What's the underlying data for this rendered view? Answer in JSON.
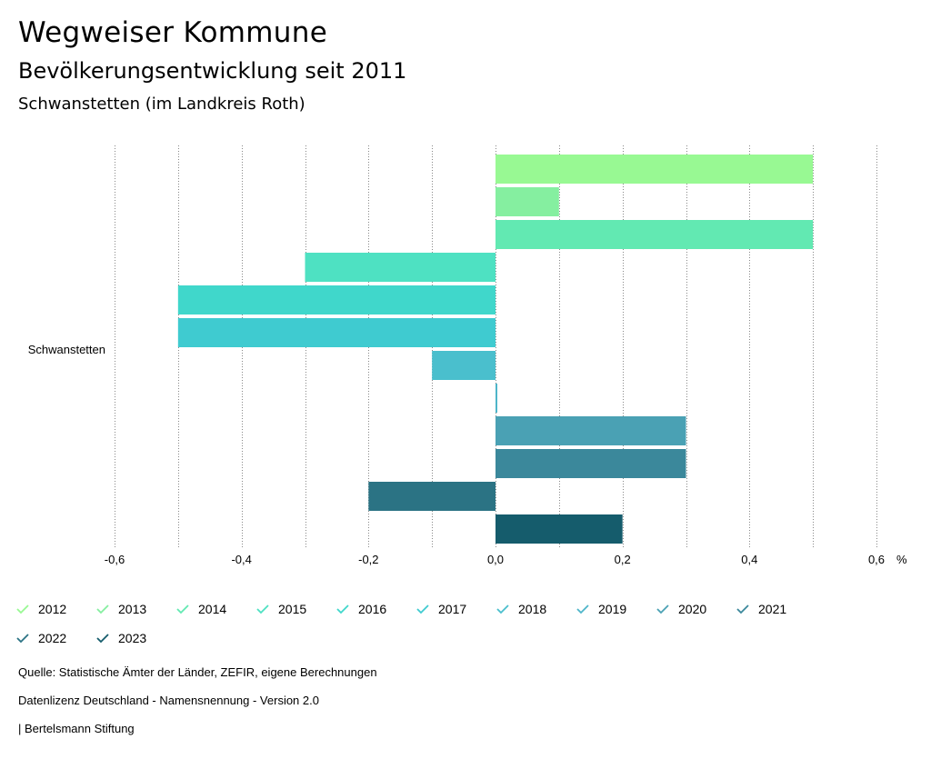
{
  "header": {
    "title": "Wegweiser Kommune",
    "subtitle": "Bevölkerungsentwicklung seit 2011",
    "region": "Schwanstetten (im Landkreis Roth)"
  },
  "chart_data": {
    "type": "bar",
    "orientation": "horizontal",
    "categories": [
      "Schwanstetten"
    ],
    "series": [
      {
        "name": "2012",
        "values": [
          0.5
        ],
        "color": "#98f993"
      },
      {
        "name": "2013",
        "values": [
          0.1
        ],
        "color": "#85efa0"
      },
      {
        "name": "2014",
        "values": [
          0.5
        ],
        "color": "#62e9b2"
      },
      {
        "name": "2015",
        "values": [
          -0.3
        ],
        "color": "#4ee1c2"
      },
      {
        "name": "2016",
        "values": [
          -0.5
        ],
        "color": "#40d7cb"
      },
      {
        "name": "2017",
        "values": [
          -0.5
        ],
        "color": "#3fcbd0"
      },
      {
        "name": "2018",
        "values": [
          -0.1
        ],
        "color": "#4abfcd"
      },
      {
        "name": "2019",
        "values": [
          0.0
        ],
        "color": "#4eb5c9"
      },
      {
        "name": "2020",
        "values": [
          0.3
        ],
        "color": "#4aa1b4"
      },
      {
        "name": "2021",
        "values": [
          0.3
        ],
        "color": "#3b889b"
      },
      {
        "name": "2022",
        "values": [
          -0.2
        ],
        "color": "#2b7384"
      },
      {
        "name": "2023",
        "values": [
          0.2
        ],
        "color": "#155c6c"
      }
    ],
    "xlim": [
      -0.6,
      0.6
    ],
    "ticks": [
      -0.6,
      -0.4,
      -0.2,
      0.0,
      0.2,
      0.4,
      0.6
    ],
    "tick_labels": [
      "-0,6",
      "-0,4",
      "-0,2",
      "0,0",
      "0,2",
      "0,4",
      "0,6"
    ],
    "unit_label": "%",
    "grid": "vertical-dotted",
    "legend_position": "bottom"
  },
  "footer": {
    "source": "Quelle: Statistische Ämter der Länder, ZEFIR, eigene Berechnungen",
    "license": "Datenlizenz Deutschland - Namensnennung - Version 2.0",
    "publisher": "| Bertelsmann Stiftung"
  }
}
